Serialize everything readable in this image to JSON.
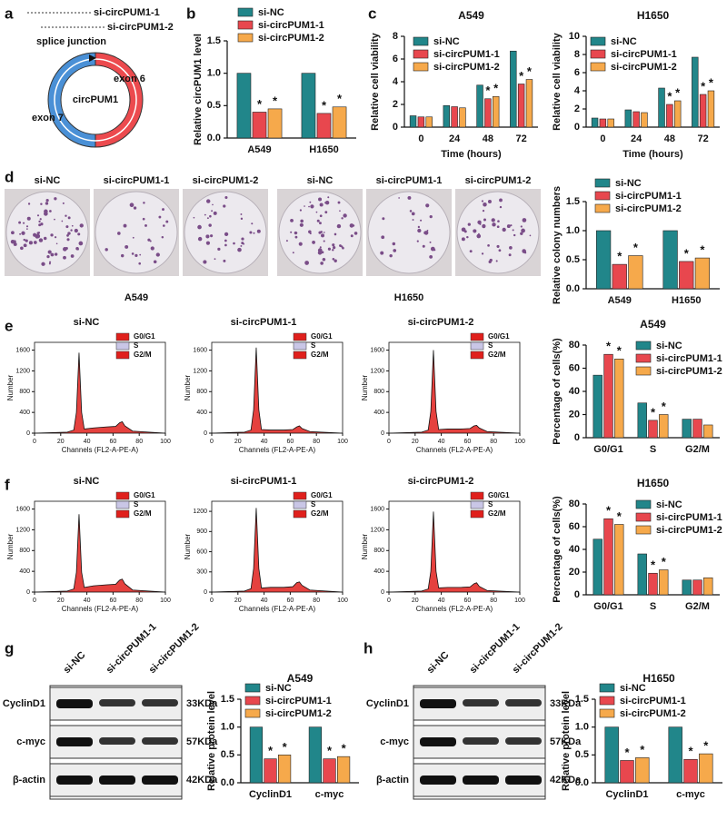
{
  "panel_labels": [
    "a",
    "b",
    "c",
    "d",
    "e",
    "f",
    "g",
    "h"
  ],
  "diagram": {
    "probes": [
      "si-circPUM1-1",
      "si-circPUM1-2"
    ],
    "junction": "splice junction",
    "center": "circPUM1",
    "exons": [
      "exon 6",
      "exon 7"
    ]
  },
  "colony": {
    "lanes": [
      "si-NC",
      "si-circPUM1-1",
      "si-circPUM1-2",
      "si-NC",
      "si-circPUM1-1",
      "si-circPUM1-2"
    ],
    "cells": [
      "A549",
      "H1650"
    ]
  },
  "blots": [
    {
      "lanes": [
        "si-NC",
        "si-circPUM1-1",
        "si-circPUM1-2"
      ],
      "rows": [
        "CyclinD1",
        "c-myc",
        "β-actin"
      ],
      "sizes": [
        "33KDa",
        "57KDa",
        "42KDa"
      ]
    },
    {
      "lanes": [
        "si-NC",
        "si-circPUM1-1",
        "si-circPUM1-2"
      ],
      "rows": [
        "CyclinD1",
        "c-myc",
        "β-actin"
      ],
      "sizes": [
        "33KDa",
        "57KDa",
        "42KDa"
      ]
    }
  ],
  "chart_data": [
    {
      "type": "bar",
      "ylabel": "Relative circPUM1 level",
      "categories": [
        "A549",
        "H1650"
      ],
      "marker": "*",
      "ylim": [
        0,
        1.5
      ],
      "yticks": [
        {
          "value": 0,
          "label": "0.0"
        },
        0.5,
        {
          "value": 1,
          "label": "1.0"
        },
        1.5
      ],
      "series": [
        {
          "name": "si-NC",
          "color": "#21868a",
          "values": [
            1.0,
            1.0
          ],
          "significant": [
            false,
            false
          ]
        },
        {
          "name": "si-circPUM1-1",
          "color": "#e8474e",
          "values": [
            0.4,
            0.38
          ],
          "significant": [
            true,
            true
          ]
        },
        {
          "name": "si-circPUM1-2",
          "color": "#f6a94b",
          "values": [
            0.45,
            0.48
          ],
          "significant": [
            true,
            true
          ]
        }
      ]
    },
    {
      "type": "bar",
      "title": "A549",
      "ylabel": "Relative cell viability",
      "xlabel": "Time (hours)",
      "categories": [
        "0",
        "24",
        "48",
        "72"
      ],
      "marker": "*",
      "ylim": [
        0,
        8
      ],
      "yticks": [
        0,
        2,
        4,
        6,
        8
      ],
      "series": [
        {
          "name": "si-NC",
          "color": "#21868a",
          "values": [
            1.0,
            1.9,
            3.7,
            6.7
          ],
          "significant": [
            false,
            false,
            false,
            false
          ]
        },
        {
          "name": "si-circPUM1-1",
          "color": "#e8474e",
          "values": [
            0.9,
            1.8,
            2.5,
            3.8
          ],
          "significant": [
            false,
            false,
            true,
            true
          ]
        },
        {
          "name": "si-circPUM1-2",
          "color": "#f6a94b",
          "values": [
            0.9,
            1.7,
            2.7,
            4.2
          ],
          "significant": [
            false,
            false,
            true,
            true
          ]
        }
      ]
    },
    {
      "type": "bar",
      "title": "H1650",
      "ylabel": "Relative cell viability",
      "xlabel": "Time (hours)",
      "categories": [
        "0",
        "24",
        "48",
        "72"
      ],
      "marker": "*",
      "ylim": [
        0,
        10
      ],
      "yticks": [
        0,
        2,
        4,
        6,
        8,
        10
      ],
      "series": [
        {
          "name": "si-NC",
          "color": "#21868a",
          "values": [
            1.0,
            1.9,
            4.3,
            7.7
          ],
          "significant": [
            false,
            false,
            false,
            false
          ]
        },
        {
          "name": "si-circPUM1-1",
          "color": "#e8474e",
          "values": [
            0.9,
            1.7,
            2.5,
            3.6
          ],
          "significant": [
            false,
            false,
            true,
            true
          ]
        },
        {
          "name": "si-circPUM1-2",
          "color": "#f6a94b",
          "values": [
            0.9,
            1.6,
            2.9,
            4.0
          ],
          "significant": [
            false,
            false,
            true,
            true
          ]
        }
      ]
    },
    {
      "type": "bar",
      "ylabel": "Relative colony numbers",
      "categories": [
        "A549",
        "H1650"
      ],
      "marker": "*",
      "ylim": [
        0,
        1.5
      ],
      "yticks": [
        {
          "value": 0,
          "label": "0.0"
        },
        0.5,
        {
          "value": 1,
          "label": "1.0"
        },
        1.5
      ],
      "series": [
        {
          "name": "si-NC",
          "color": "#21868a",
          "values": [
            1.0,
            1.0
          ],
          "significant": [
            false,
            false
          ]
        },
        {
          "name": "si-circPUM1-1",
          "color": "#e8474e",
          "values": [
            0.42,
            0.47
          ],
          "significant": [
            true,
            true
          ]
        },
        {
          "name": "si-circPUM1-2",
          "color": "#f6a94b",
          "values": [
            0.57,
            0.53
          ],
          "significant": [
            true,
            true
          ]
        }
      ]
    },
    {
      "type": "bar",
      "title": "A549",
      "ylabel": "Percentage of cells(%)",
      "categories": [
        "G0/G1",
        "S",
        "G2/M"
      ],
      "marker": "*",
      "ylim": [
        0,
        80
      ],
      "yticks": [
        0,
        20,
        40,
        60,
        80
      ],
      "series": [
        {
          "name": "si-NC",
          "color": "#21868a",
          "values": [
            54,
            30,
            16
          ],
          "significant": [
            false,
            false,
            false
          ]
        },
        {
          "name": "si-circPUM1-1",
          "color": "#e8474e",
          "values": [
            72,
            15,
            16
          ],
          "significant": [
            true,
            true,
            false
          ]
        },
        {
          "name": "si-circPUM1-2",
          "color": "#f6a94b",
          "values": [
            68,
            20,
            11
          ],
          "significant": [
            true,
            true,
            false
          ]
        }
      ]
    },
    {
      "type": "bar",
      "title": "H1650",
      "ylabel": "Percentage of cells(%)",
      "categories": [
        "G0/G1",
        "S",
        "G2/M"
      ],
      "marker": "*",
      "ylim": [
        0,
        80
      ],
      "yticks": [
        0,
        20,
        40,
        60,
        80
      ],
      "series": [
        {
          "name": "si-NC",
          "color": "#21868a",
          "values": [
            49,
            36,
            13
          ],
          "significant": [
            false,
            false,
            false
          ]
        },
        {
          "name": "si-circPUM1-1",
          "color": "#e8474e",
          "values": [
            67,
            19,
            13
          ],
          "significant": [
            true,
            true,
            false
          ]
        },
        {
          "name": "si-circPUM1-2",
          "color": "#f6a94b",
          "values": [
            62,
            22,
            15
          ],
          "significant": [
            true,
            true,
            false
          ]
        }
      ]
    },
    {
      "type": "bar",
      "title": "A549",
      "ylabel": "Relative protein level",
      "categories": [
        "CyclinD1",
        "c-myc"
      ],
      "marker": "*",
      "ylim": [
        0,
        1.5
      ],
      "yticks": [
        {
          "value": 0,
          "label": "0.0"
        },
        0.5,
        {
          "value": 1,
          "label": "1.0"
        },
        1.5
      ],
      "series": [
        {
          "name": "si-NC",
          "color": "#21868a",
          "values": [
            1.0,
            1.0
          ],
          "significant": [
            false,
            false
          ]
        },
        {
          "name": "si-circPUM1-1",
          "color": "#e8474e",
          "values": [
            0.43,
            0.43
          ],
          "significant": [
            true,
            true
          ]
        },
        {
          "name": "si-circPUM1-2",
          "color": "#f6a94b",
          "values": [
            0.5,
            0.47
          ],
          "significant": [
            true,
            true
          ]
        }
      ]
    },
    {
      "type": "bar",
      "title": "H1650",
      "ylabel": "Relative protein level",
      "categories": [
        "CyclinD1",
        "c-myc"
      ],
      "marker": "*",
      "ylim": [
        0,
        1.5
      ],
      "yticks": [
        {
          "value": 0,
          "label": "0.0"
        },
        0.5,
        {
          "value": 1,
          "label": "1.0"
        },
        1.5
      ],
      "series": [
        {
          "name": "si-NC",
          "color": "#21868a",
          "values": [
            1.0,
            1.0
          ],
          "significant": [
            false,
            false
          ]
        },
        {
          "name": "si-circPUM1-1",
          "color": "#e8474e",
          "values": [
            0.4,
            0.42
          ],
          "significant": [
            true,
            true
          ]
        },
        {
          "name": "si-circPUM1-2",
          "color": "#f6a94b",
          "values": [
            0.45,
            0.52
          ],
          "significant": [
            true,
            true
          ]
        }
      ]
    },
    {
      "type": "area",
      "title": "si-NC",
      "xlabel": "Channels (FL2-A-PE-A)",
      "ylabel": "Number",
      "legend": [
        "G0/G1",
        "S",
        "G2/M"
      ],
      "legend_colors": [
        "#e0201c",
        "#c9c6e6",
        "#e0201c"
      ],
      "color": "#e0201c",
      "xlim": [
        0,
        100
      ],
      "xticks": [
        0,
        20,
        40,
        60,
        80,
        100
      ],
      "ylim": [
        0,
        1750
      ],
      "yticks": [
        0,
        400,
        800,
        1200,
        1600
      ],
      "x": [
        0,
        25,
        30,
        32,
        34,
        36,
        38,
        45,
        55,
        62,
        65,
        67,
        69,
        75,
        100
      ],
      "values": [
        0,
        20,
        60,
        400,
        1550,
        400,
        80,
        100,
        120,
        130,
        200,
        220,
        140,
        40,
        0
      ]
    },
    {
      "type": "area",
      "title": "si-circPUM1-1",
      "xlabel": "Channels (FL2-A-PE-A)",
      "ylabel": "Number",
      "legend": [
        "G0/G1",
        "S",
        "G2/M"
      ],
      "legend_colors": [
        "#e0201c",
        "#c9c6e6",
        "#e0201c"
      ],
      "color": "#e0201c",
      "xlim": [
        0,
        100
      ],
      "xticks": [
        0,
        20,
        40,
        60,
        80,
        100
      ],
      "ylim": [
        0,
        1750
      ],
      "yticks": [
        0,
        400,
        800,
        1200,
        1600
      ],
      "x": [
        0,
        25,
        30,
        32,
        34,
        36,
        38,
        45,
        55,
        62,
        65,
        67,
        69,
        75,
        100
      ],
      "values": [
        0,
        20,
        60,
        450,
        1650,
        450,
        70,
        60,
        60,
        70,
        120,
        140,
        90,
        30,
        0
      ]
    },
    {
      "type": "area",
      "title": "si-circPUM1-2",
      "xlabel": "Channels (FL2-A-PE-A)",
      "ylabel": "Number",
      "legend": [
        "G0/G1",
        "S",
        "G2/M"
      ],
      "legend_colors": [
        "#e0201c",
        "#c9c6e6",
        "#e0201c"
      ],
      "color": "#e0201c",
      "xlim": [
        0,
        100
      ],
      "xticks": [
        0,
        20,
        40,
        60,
        80,
        100
      ],
      "ylim": [
        0,
        1750
      ],
      "yticks": [
        0,
        400,
        800,
        1200,
        1600
      ],
      "x": [
        0,
        25,
        30,
        32,
        34,
        36,
        38,
        45,
        55,
        62,
        65,
        67,
        69,
        75,
        100
      ],
      "values": [
        0,
        20,
        60,
        420,
        1600,
        420,
        70,
        80,
        80,
        90,
        140,
        150,
        100,
        30,
        0
      ]
    },
    {
      "type": "area",
      "title": "si-NC",
      "xlabel": "Channels (FL2-A-PE-A)",
      "ylabel": "Number",
      "legend": [
        "G0/G1",
        "S",
        "G2/M"
      ],
      "legend_colors": [
        "#e0201c",
        "#c9c6e6",
        "#e0201c"
      ],
      "color": "#e0201c",
      "xlim": [
        0,
        100
      ],
      "xticks": [
        0,
        20,
        40,
        60,
        80,
        100
      ],
      "ylim": [
        0,
        1750
      ],
      "yticks": [
        0,
        400,
        800,
        1200,
        1600
      ],
      "x": [
        0,
        25,
        30,
        32,
        34,
        36,
        38,
        45,
        55,
        62,
        65,
        67,
        69,
        75,
        100
      ],
      "values": [
        0,
        20,
        60,
        380,
        1500,
        380,
        90,
        120,
        140,
        150,
        230,
        250,
        160,
        40,
        0
      ]
    },
    {
      "type": "area",
      "title": "si-circPUM1-1",
      "xlabel": "Channels (FL2-A-PE-A)",
      "ylabel": "Number",
      "legend": [
        "G0/G1",
        "S",
        "G2/M"
      ],
      "legend_colors": [
        "#e0201c",
        "#c9c6e6",
        "#e0201c"
      ],
      "color": "#e0201c",
      "xlim": [
        0,
        100
      ],
      "xticks": [
        0,
        20,
        40,
        60,
        80,
        100
      ],
      "ylim": [
        0,
        1350
      ],
      "yticks": [
        0,
        300,
        600,
        900,
        1200
      ],
      "x": [
        0,
        25,
        30,
        32,
        34,
        36,
        38,
        45,
        55,
        62,
        65,
        67,
        69,
        75,
        100
      ],
      "values": [
        0,
        15,
        50,
        350,
        1250,
        350,
        60,
        70,
        70,
        80,
        140,
        150,
        100,
        30,
        0
      ]
    },
    {
      "type": "area",
      "title": "si-circPUM1-2",
      "xlabel": "Channels (FL2-A-PE-A)",
      "ylabel": "Number",
      "legend": [
        "G0/G1",
        "S",
        "G2/M"
      ],
      "legend_colors": [
        "#e0201c",
        "#c9c6e6",
        "#e0201c"
      ],
      "color": "#e0201c",
      "xlim": [
        0,
        100
      ],
      "xticks": [
        0,
        20,
        40,
        60,
        80,
        100
      ],
      "ylim": [
        0,
        1750
      ],
      "yticks": [
        0,
        400,
        800,
        1200,
        1600
      ],
      "x": [
        0,
        25,
        30,
        32,
        34,
        36,
        38,
        45,
        55,
        62,
        65,
        67,
        69,
        75,
        100
      ],
      "values": [
        0,
        20,
        60,
        400,
        1550,
        400,
        80,
        90,
        90,
        100,
        160,
        180,
        110,
        30,
        0
      ]
    }
  ]
}
